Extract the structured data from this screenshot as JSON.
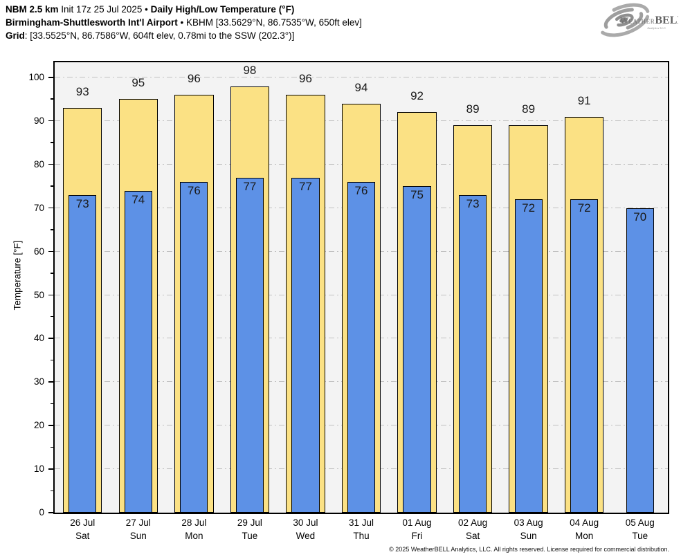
{
  "header": {
    "model": "NBM 2.5 km",
    "init": "Init 17z 25 Jul 2025",
    "sep": "•",
    "product": "Daily High/Low Temperature (°F)",
    "station_name": "Birmingham-Shuttlesworth Int'l Airport",
    "station_info": "KBHM [33.5629°N, 86.7535°W, 650ft elev]",
    "grid_label": "Grid",
    "grid_info": ": [33.5525°N, 86.7586°W, 604ft elev, 0.78mi to the SSW (202.3°)]"
  },
  "logo": {
    "brand_weather": "Weather",
    "brand_bell": "BELL",
    "brand_sub": "Analytics LLC"
  },
  "chart_data": {
    "type": "bar",
    "title": "Daily High/Low Temperature (°F)",
    "xlabel": "",
    "ylabel": "Temperature [°F]",
    "ylim": [
      0,
      103.5
    ],
    "yticks": [
      0,
      10,
      20,
      30,
      40,
      50,
      60,
      70,
      80,
      90,
      100
    ],
    "ytick_interval": 10,
    "yminor_interval": 5,
    "grid": "horizontal dash-dot",
    "legend": "none",
    "categories": [
      {
        "date": "26 Jul",
        "day": "Sat"
      },
      {
        "date": "27 Jul",
        "day": "Sun"
      },
      {
        "date": "28 Jul",
        "day": "Mon"
      },
      {
        "date": "29 Jul",
        "day": "Tue"
      },
      {
        "date": "30 Jul",
        "day": "Wed"
      },
      {
        "date": "31 Jul",
        "day": "Thu"
      },
      {
        "date": "01 Aug",
        "day": "Fri"
      },
      {
        "date": "02 Aug",
        "day": "Sat"
      },
      {
        "date": "03 Aug",
        "day": "Sun"
      },
      {
        "date": "04 Aug",
        "day": "Mon"
      },
      {
        "date": "05 Aug",
        "day": "Tue"
      }
    ],
    "series": [
      {
        "name": "High",
        "color": "#FBE184",
        "values": [
          93,
          95,
          96,
          98,
          96,
          94,
          92,
          89,
          89,
          91,
          null
        ]
      },
      {
        "name": "Low",
        "color": "#5D91E6",
        "values": [
          73,
          74,
          76,
          77,
          77,
          76,
          75,
          73,
          72,
          72,
          70
        ]
      }
    ]
  },
  "colors": {
    "plot_background": "#f3f3f3",
    "gridline": "#c0c0c0",
    "bar_border": "#000000",
    "axis": "#000000",
    "high_bar": "#FBE184",
    "low_bar": "#5D91E6"
  },
  "footer": {
    "copyright": "© 2025 WeatherBELL Analytics, LLC. All rights reserved. License required for commercial distribution."
  }
}
